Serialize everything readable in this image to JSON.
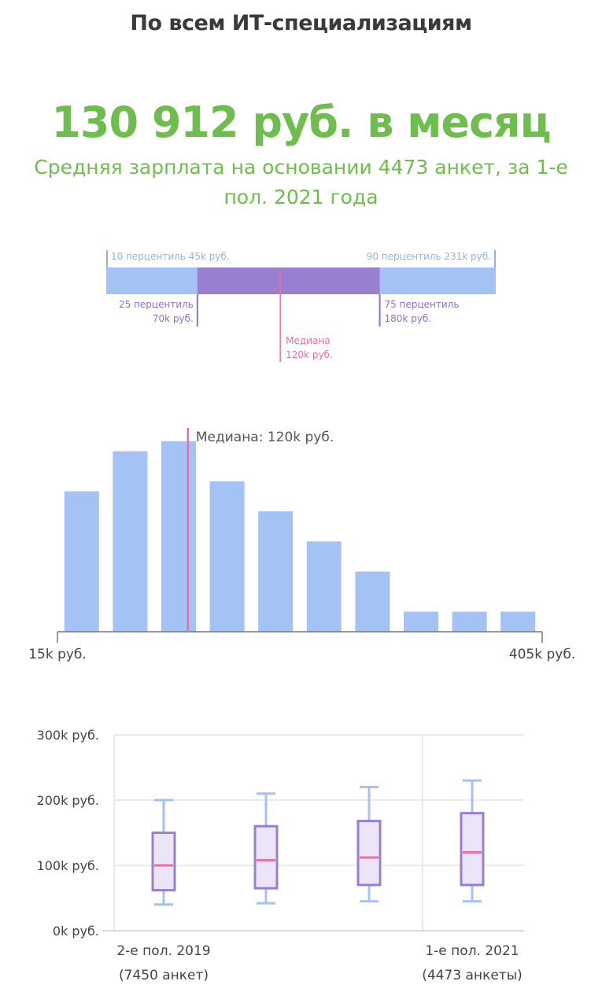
{
  "header": {
    "title": "По всем ИТ-специализациям",
    "salary": "130 912 руб. в месяц",
    "subtitle": "Средняя зарплата на основании 4473 анкет, за 1-е пол. 2021 года"
  },
  "colors": {
    "green": "#6fbd4f",
    "light_blue": "#a4c2f4",
    "purple": "#9a7fd1",
    "pink": "#e86fa0",
    "label_blue": "#8fb4e6",
    "label_purple": "#8f6fc9",
    "box_fill": "#ebe5f7"
  },
  "chart_data": [
    {
      "type": "percentile-bar",
      "range_min": 15,
      "range_max": 250,
      "p10": {
        "value": 45,
        "label": "10 перцентиль 45k руб."
      },
      "p90": {
        "value": 231,
        "label": "90 перцентиль 231k руб."
      },
      "p25": {
        "value": 70,
        "label_line1": "25 перцентиль",
        "label_line2": "70k руб."
      },
      "p75": {
        "value": 180,
        "label_line1": "75 перцентиль",
        "label_line2": "180k руб."
      },
      "median": {
        "value": 120,
        "label_line1": "Медиана",
        "label_line2": "120k руб."
      }
    },
    {
      "type": "bar",
      "x_min_label": "15k руб.",
      "x_max_label": "405k руб.",
      "x_range": [
        15,
        405
      ],
      "bins": 10,
      "values": [
        70,
        90,
        95,
        75,
        60,
        45,
        30,
        10,
        10,
        10
      ],
      "median_value": 120,
      "median_label": "Медиана: 120k руб."
    },
    {
      "type": "boxplot",
      "ylim": [
        0,
        300
      ],
      "yticks": [
        {
          "value": 0,
          "label": "0k руб."
        },
        {
          "value": 100,
          "label": "100k руб."
        },
        {
          "value": 200,
          "label": "200k руб."
        },
        {
          "value": 300,
          "label": "300k руб."
        }
      ],
      "first_label": {
        "line1": "2-е пол. 2019",
        "line2": "(7450 анкет)"
      },
      "last_label": {
        "line1": "1-е пол. 2021",
        "line2": "(4473 анкеты)"
      },
      "boxes": [
        {
          "min": 40,
          "q1": 62,
          "median": 100,
          "q3": 150,
          "max": 200
        },
        {
          "min": 42,
          "q1": 65,
          "median": 108,
          "q3": 160,
          "max": 210
        },
        {
          "min": 45,
          "q1": 70,
          "median": 112,
          "q3": 168,
          "max": 220
        },
        {
          "min": 45,
          "q1": 70,
          "median": 120,
          "q3": 180,
          "max": 230
        }
      ]
    }
  ]
}
